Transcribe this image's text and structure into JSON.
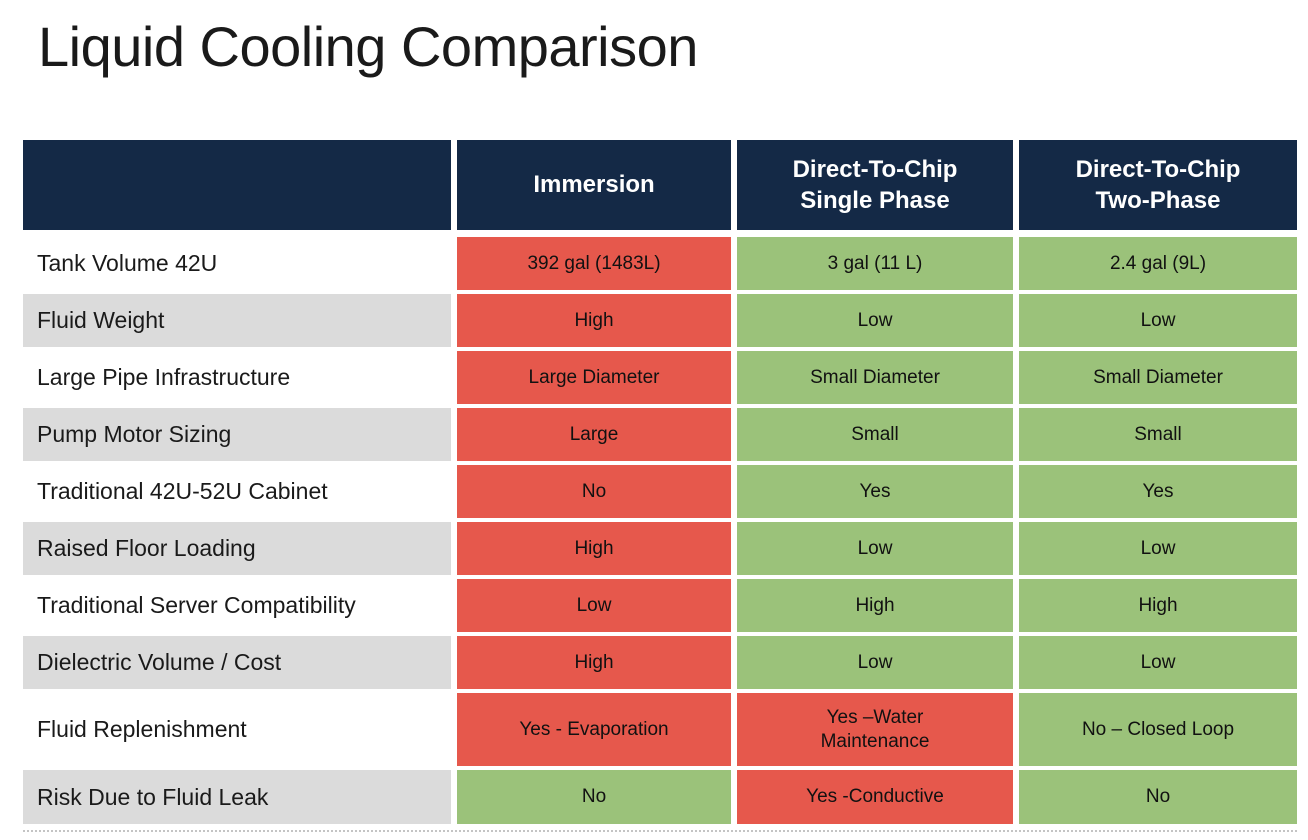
{
  "title": "Liquid Cooling Comparison",
  "colors": {
    "header_bg": "#142946",
    "header_text": "#FFFFFF",
    "negative_cell": "#E6584C",
    "positive_cell": "#9BC27A",
    "label_alt_row": "#DBDBDB",
    "label_plain_row": "#FFFFFF"
  },
  "table": {
    "header": {
      "col0": "",
      "col1": "Immersion",
      "col2": "Direct-To-Chip\nSingle Phase",
      "col3": "Direct-To-Chip\nTwo-Phase"
    },
    "rows": [
      {
        "label": "Tank Volume 42U",
        "shade": "plain",
        "cells": [
          {
            "text": "392 gal (1483L)",
            "status": "bad"
          },
          {
            "text": "3 gal (11 L)",
            "status": "good"
          },
          {
            "text": "2.4 gal (9L)",
            "status": "good"
          }
        ]
      },
      {
        "label": "Fluid Weight",
        "shade": "alt",
        "cells": [
          {
            "text": "High",
            "status": "bad"
          },
          {
            "text": "Low",
            "status": "good"
          },
          {
            "text": "Low",
            "status": "good"
          }
        ]
      },
      {
        "label": "Large Pipe Infrastructure",
        "shade": "plain",
        "cells": [
          {
            "text": "Large Diameter",
            "status": "bad"
          },
          {
            "text": "Small Diameter",
            "status": "good"
          },
          {
            "text": "Small Diameter",
            "status": "good"
          }
        ]
      },
      {
        "label": "Pump Motor Sizing",
        "shade": "alt",
        "cells": [
          {
            "text": "Large",
            "status": "bad"
          },
          {
            "text": "Small",
            "status": "good"
          },
          {
            "text": "Small",
            "status": "good"
          }
        ]
      },
      {
        "label": "Traditional 42U-52U Cabinet",
        "shade": "plain",
        "cells": [
          {
            "text": "No",
            "status": "bad"
          },
          {
            "text": "Yes",
            "status": "good"
          },
          {
            "text": "Yes",
            "status": "good"
          }
        ]
      },
      {
        "label": "Raised Floor Loading",
        "shade": "alt",
        "cells": [
          {
            "text": "High",
            "status": "bad"
          },
          {
            "text": "Low",
            "status": "good"
          },
          {
            "text": "Low",
            "status": "good"
          }
        ]
      },
      {
        "label": "Traditional Server Compatibility",
        "shade": "plain",
        "cells": [
          {
            "text": "Low",
            "status": "bad"
          },
          {
            "text": "High",
            "status": "good"
          },
          {
            "text": "High",
            "status": "good"
          }
        ]
      },
      {
        "label": "Dielectric Volume / Cost",
        "shade": "alt",
        "cells": [
          {
            "text": "High",
            "status": "bad"
          },
          {
            "text": "Low",
            "status": "good"
          },
          {
            "text": "Low",
            "status": "good"
          }
        ]
      },
      {
        "label": "Fluid Replenishment",
        "shade": "plain",
        "tall": true,
        "cells": [
          {
            "text": "Yes - Evaporation",
            "status": "bad"
          },
          {
            "text": "Yes –Water\nMaintenance",
            "status": "bad"
          },
          {
            "text": "No – Closed Loop",
            "status": "good"
          }
        ]
      },
      {
        "label": "Risk Due to Fluid Leak",
        "shade": "alt",
        "last": true,
        "cells": [
          {
            "text": "No",
            "status": "good"
          },
          {
            "text": "Yes -Conductive",
            "status": "bad"
          },
          {
            "text": "No",
            "status": "good"
          }
        ]
      }
    ]
  }
}
